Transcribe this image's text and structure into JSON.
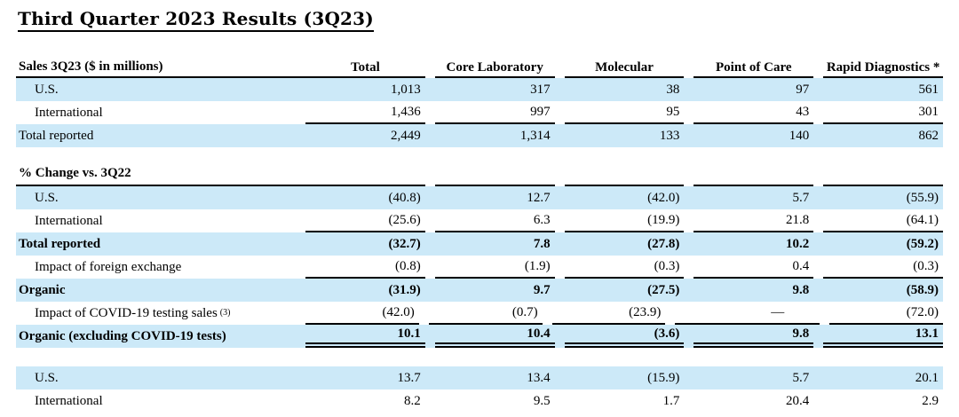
{
  "title": "Third Quarter 2023 Results (3Q23)",
  "colors": {
    "row_highlight": "#cce9f8",
    "rule": "#000000",
    "text": "#000000"
  },
  "table": {
    "header": {
      "label": "Sales 3Q23 ($ in millions)",
      "columns": [
        "Total",
        "Core Laboratory",
        "Molecular",
        "Point of Care",
        "Rapid Diagnostics *"
      ]
    },
    "sales_rows": [
      {
        "label": "U.S.",
        "values": [
          "1,013",
          "317",
          "38",
          "97",
          "561"
        ]
      },
      {
        "label": "International",
        "values": [
          "1,436",
          "997",
          "95",
          "43",
          "301"
        ]
      },
      {
        "label": "Total reported",
        "values": [
          "2,449",
          "1,314",
          "133",
          "140",
          "862"
        ]
      }
    ],
    "change_header": "% Change vs. 3Q22",
    "change_rows": [
      {
        "label": "U.S.",
        "values": [
          "(40.8)",
          "12.7",
          "(42.0)",
          "5.7",
          "(55.9)"
        ]
      },
      {
        "label": "International",
        "values": [
          "(25.6)",
          "6.3",
          "(19.9)",
          "21.8",
          "(64.1)"
        ]
      },
      {
        "label": "Total reported",
        "values": [
          "(32.7)",
          "7.8",
          "(27.8)",
          "10.2",
          "(59.2)"
        ]
      },
      {
        "label": "Impact of foreign exchange",
        "values": [
          "(0.8)",
          "(1.9)",
          "(0.3)",
          "0.4",
          "(0.3)"
        ]
      },
      {
        "label": "Organic",
        "values": [
          "(31.9)",
          "9.7",
          "(27.5)",
          "9.8",
          "(58.9)"
        ]
      },
      {
        "label": "Impact of COVID-19 testing sales",
        "footnote": "(3)",
        "values": [
          "(42.0)",
          "(0.7)",
          "(23.9)",
          "—",
          "(72.0)"
        ]
      },
      {
        "label": "Organic (excluding COVID-19 tests)",
        "values": [
          "10.1",
          "10.4",
          "(3.6)",
          "9.8",
          "13.1"
        ]
      }
    ],
    "bottom_rows": [
      {
        "label": "U.S.",
        "values": [
          "13.7",
          "13.4",
          "(15.9)",
          "5.7",
          "20.1"
        ]
      },
      {
        "label": "International",
        "values": [
          "8.2",
          "9.5",
          "1.7",
          "20.4",
          "2.9"
        ]
      }
    ]
  }
}
